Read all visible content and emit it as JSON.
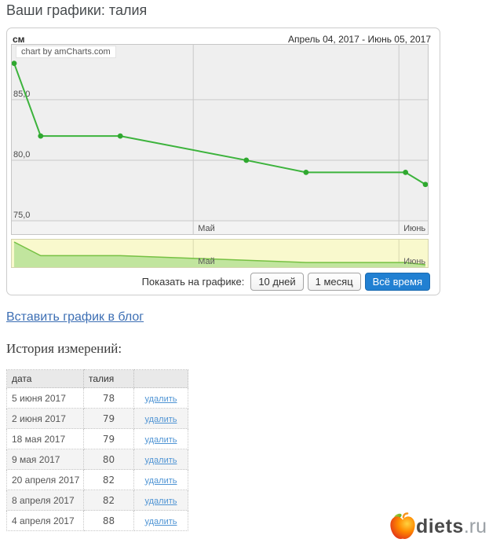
{
  "page": {
    "title": "Ваши графики: талия",
    "insert_link": "Вставить график в блог",
    "history_title": "История измерений:"
  },
  "chart": {
    "unit_label": "см",
    "date_range": "Апрель 04, 2017 - Июнь 05, 2017",
    "watermark": "chart by amCharts.com",
    "controls": {
      "label": "Показать на графике:",
      "buttons": [
        {
          "label": "10 дней",
          "active": false
        },
        {
          "label": "1 месяц",
          "active": false
        },
        {
          "label": "Всё время",
          "active": true
        }
      ]
    }
  },
  "chart_data": {
    "type": "line",
    "title": "талия",
    "ylabel": "см",
    "series": [
      {
        "name": "талия",
        "x": [
          "2017-04-04",
          "2017-04-08",
          "2017-04-20",
          "2017-05-09",
          "2017-05-18",
          "2017-06-02",
          "2017-06-05"
        ],
        "values": [
          88,
          82,
          82,
          80,
          79,
          79,
          78
        ]
      }
    ],
    "point_days": [
      0,
      4,
      16,
      35,
      44,
      59,
      62
    ],
    "x_total_days": 62,
    "x_range": [
      "2017-04-04",
      "2017-06-05"
    ],
    "ylim": [
      75,
      89.6
    ],
    "grid": true,
    "legend_position": "none",
    "y_ticks": [
      {
        "label": "85,0",
        "value": 85
      },
      {
        "label": "80,0",
        "value": 80
      },
      {
        "label": "75,0",
        "value": 75
      }
    ],
    "x_ticks": [
      {
        "label": "Май",
        "day": 27
      },
      {
        "label": "Июнь",
        "day": 58
      }
    ],
    "colors": {
      "line": "#3cb33c",
      "bullet": "#2fa82f",
      "plot_bg": "#efefef",
      "axis_band_bg": "#f3f3f3",
      "grid": "#c9c9c9",
      "mini_bg": "#f9f9cd",
      "mini_fill": "#c1e59e",
      "mini_stroke": "#76c143"
    }
  },
  "table": {
    "headers": [
      "дата",
      "талия",
      ""
    ],
    "rows": [
      {
        "date": "5 июня 2017",
        "value": "78",
        "action": "удалить"
      },
      {
        "date": "2 июня 2017",
        "value": "79",
        "action": "удалить"
      },
      {
        "date": "18 мая 2017",
        "value": "79",
        "action": "удалить"
      },
      {
        "date": "9 мая 2017",
        "value": "80",
        "action": "удалить"
      },
      {
        "date": "20 апреля 2017",
        "value": "82",
        "action": "удалить"
      },
      {
        "date": "8 апреля 2017",
        "value": "82",
        "action": "удалить"
      },
      {
        "date": "4 апреля 2017",
        "value": "88",
        "action": "удалить"
      }
    ]
  },
  "footer": {
    "logo_text": "diets",
    "logo_suffix": ".ru"
  }
}
